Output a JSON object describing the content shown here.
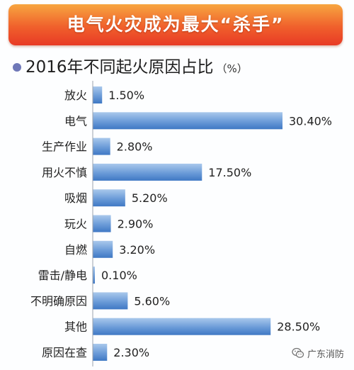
{
  "banner": {
    "title": "电气火灾成为最大“杀手”"
  },
  "subtitle": {
    "text": "2016年不同起火原因占比",
    "unit": "（%）"
  },
  "watermark": {
    "text": "广东消防",
    "icon": "wechat-icon"
  },
  "colors": {
    "banner_top": "#f7a640",
    "banner_bottom": "#e83a25",
    "bar_light": "#a9c8ec",
    "bar_dark": "#3f78c4",
    "dot": "#6f78b8"
  },
  "chart_data": {
    "type": "bar",
    "orientation": "horizontal",
    "title": "2016年不同起火原因占比",
    "unit": "%",
    "categories": [
      "放火",
      "电气",
      "生产作业",
      "用火不慎",
      "吸烟",
      "玩火",
      "自燃",
      "雷击/静电",
      "不明确原因",
      "其他",
      "原因在查"
    ],
    "values": [
      1.5,
      30.4,
      2.8,
      17.5,
      5.2,
      2.9,
      3.2,
      0.1,
      5.6,
      28.5,
      2.3
    ],
    "labels": [
      "1.50%",
      "30.40%",
      "2.80%",
      "17.50%",
      "5.20%",
      "2.90%",
      "3.20%",
      "0.10%",
      "5.60%",
      "28.50%",
      "2.30%"
    ],
    "xlim": [
      0,
      30.4
    ],
    "grid": false,
    "legend": "none"
  }
}
